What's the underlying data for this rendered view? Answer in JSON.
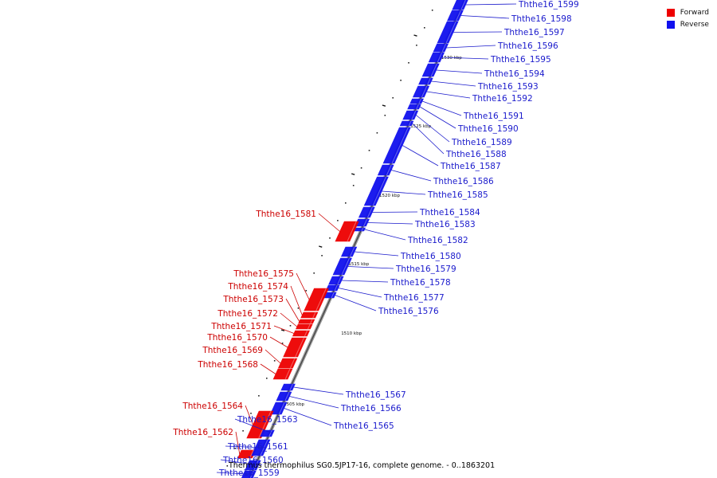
{
  "legend": {
    "forward_label": "Forward",
    "reverse_label": "Reverse",
    "forward_color": "#ee0000",
    "reverse_color": "#1010ee"
  },
  "caption": "Thermus thermophilus SG0.5JP17-16, complete genome. - 0..1863201",
  "ticks": [
    "1530 kbp",
    "1525 kbp",
    "1520 kbp",
    "1515 kbp",
    "1510 kbp",
    "1505 kbp"
  ],
  "genes": [
    {
      "name": "Ththe16_1599",
      "strand": "reverse"
    },
    {
      "name": "Ththe16_1598",
      "strand": "reverse"
    },
    {
      "name": "Ththe16_1597",
      "strand": "reverse"
    },
    {
      "name": "Ththe16_1596",
      "strand": "reverse"
    },
    {
      "name": "Ththe16_1595",
      "strand": "reverse"
    },
    {
      "name": "Ththe16_1594",
      "strand": "reverse"
    },
    {
      "name": "Ththe16_1593",
      "strand": "reverse"
    },
    {
      "name": "Ththe16_1592",
      "strand": "reverse"
    },
    {
      "name": "Ththe16_1591",
      "strand": "reverse"
    },
    {
      "name": "Ththe16_1590",
      "strand": "reverse"
    },
    {
      "name": "Ththe16_1589",
      "strand": "reverse"
    },
    {
      "name": "Ththe16_1588",
      "strand": "reverse"
    },
    {
      "name": "Ththe16_1587",
      "strand": "reverse"
    },
    {
      "name": "Ththe16_1586",
      "strand": "reverse"
    },
    {
      "name": "Ththe16_1585",
      "strand": "reverse"
    },
    {
      "name": "Ththe16_1584",
      "strand": "reverse"
    },
    {
      "name": "Ththe16_1583",
      "strand": "reverse"
    },
    {
      "name": "Ththe16_1582",
      "strand": "reverse"
    },
    {
      "name": "Ththe16_1581",
      "strand": "forward"
    },
    {
      "name": "Ththe16_1580",
      "strand": "reverse"
    },
    {
      "name": "Ththe16_1579",
      "strand": "reverse"
    },
    {
      "name": "Ththe16_1578",
      "strand": "reverse"
    },
    {
      "name": "Ththe16_1577",
      "strand": "reverse"
    },
    {
      "name": "Ththe16_1576",
      "strand": "reverse"
    },
    {
      "name": "Ththe16_1575",
      "strand": "forward"
    },
    {
      "name": "Ththe16_1574",
      "strand": "forward"
    },
    {
      "name": "Ththe16_1573",
      "strand": "forward"
    },
    {
      "name": "Ththe16_1572",
      "strand": "forward"
    },
    {
      "name": "Ththe16_1571",
      "strand": "forward"
    },
    {
      "name": "Ththe16_1570",
      "strand": "forward"
    },
    {
      "name": "Ththe16_1569",
      "strand": "forward"
    },
    {
      "name": "Ththe16_1568",
      "strand": "forward"
    },
    {
      "name": "Ththe16_1567",
      "strand": "reverse"
    },
    {
      "name": "Ththe16_1566",
      "strand": "reverse"
    },
    {
      "name": "Ththe16_1565",
      "strand": "reverse"
    },
    {
      "name": "Ththe16_1564",
      "strand": "forward"
    },
    {
      "name": "Ththe16_1563",
      "strand": "reverse"
    },
    {
      "name": "Ththe16_1562",
      "strand": "forward"
    },
    {
      "name": "Ththe16_1561",
      "strand": "reverse"
    },
    {
      "name": "Ththe16_1560",
      "strand": "reverse"
    },
    {
      "name": "Ththe16_1559",
      "strand": "reverse"
    }
  ]
}
